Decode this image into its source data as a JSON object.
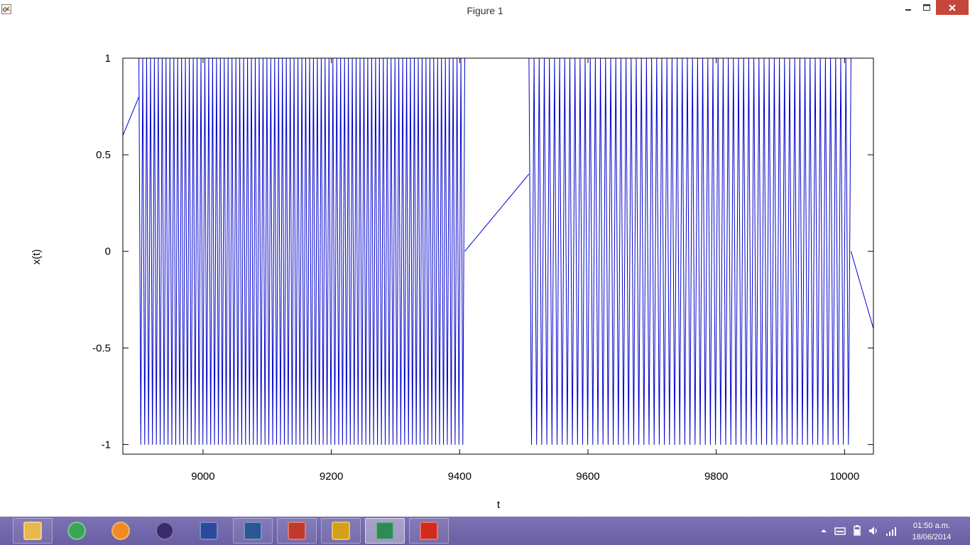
{
  "window": {
    "title": "Figure 1",
    "icon": "plot-window-icon"
  },
  "controls": {
    "minimize_icon": "minimize-icon",
    "maximize_icon": "maximize-icon",
    "close_icon": "close-icon"
  },
  "chart_data": {
    "type": "line",
    "title": "",
    "xlabel": "t",
    "ylabel": "x(t)",
    "xlim": [
      8875,
      10045
    ],
    "ylim": [
      -1.05,
      1.0
    ],
    "x_ticks": [
      9000,
      9200,
      9400,
      9600,
      9800,
      10000
    ],
    "y_ticks": [
      1,
      0.5,
      0,
      -0.5,
      -1
    ],
    "x_tick_labels": [
      "9000",
      "9200",
      "9400",
      "9600",
      "9800",
      "10000"
    ],
    "y_tick_labels": [
      "1",
      "0.5",
      "0",
      "-0.5",
      "-1"
    ],
    "grid": false,
    "legend": "none",
    "color": "#0000cc",
    "series": [
      {
        "segments": [
          {
            "kind": "ramp",
            "x": [
              8875,
              8900
            ],
            "y": [
              0.6,
              0.8
            ]
          },
          {
            "kind": "oscillation",
            "x_start": 8900,
            "x_end": 9408,
            "cycles": 84,
            "y_min": -1,
            "y_max": 1
          },
          {
            "kind": "ramp",
            "x": [
              9408,
              9508
            ],
            "y": [
              0.0,
              0.4
            ]
          },
          {
            "kind": "oscillation",
            "x_start": 9508,
            "x_end": 10010,
            "cycles": 63,
            "y_min": -1,
            "y_max": 1
          },
          {
            "kind": "ramp",
            "x": [
              10010,
              10045
            ],
            "y": [
              0.0,
              -0.4
            ]
          }
        ]
      }
    ]
  },
  "taskbar": {
    "items": [
      {
        "name": "file-explorer-icon",
        "color": "#e8b84a",
        "active": false
      },
      {
        "name": "chrome-icon",
        "color": "#3aa757",
        "active": false
      },
      {
        "name": "media-player-icon",
        "color": "#f08a24",
        "active": false
      },
      {
        "name": "eclipse-icon",
        "color": "#3b2a6e",
        "active": false
      },
      {
        "name": "text-editor-icon",
        "color": "#2b4a9b",
        "active": false
      },
      {
        "name": "word-icon",
        "color": "#2b5797",
        "active": false
      },
      {
        "name": "tools-icon",
        "color": "#c0392b",
        "active": false
      },
      {
        "name": "paint-icon",
        "color": "#d4a017",
        "active": false
      },
      {
        "name": "plot-window-icon",
        "color": "#2e8b57",
        "active": true
      },
      {
        "name": "pdf-reader-icon",
        "color": "#d12b1f",
        "active": false
      }
    ],
    "tray": {
      "icons": [
        "show-hidden-icons-icon",
        "keyboard-icon",
        "power-icon",
        "volume-icon",
        "network-icon"
      ],
      "time": "01:50 a.m.",
      "date": "18/06/2014"
    }
  }
}
